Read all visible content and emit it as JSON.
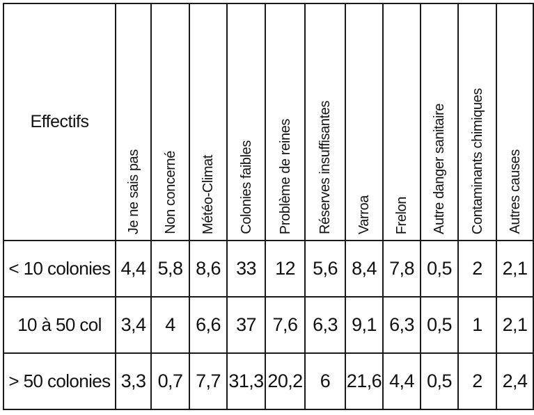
{
  "table": {
    "corner_label": "Effectifs",
    "columns": [
      "Je ne sais pas",
      "Non concerné",
      "Météo-Climat",
      "Colonies faibles",
      "Problème de reines",
      "Réserves insuffisantes",
      "Varroa",
      "Frelon",
      "Autre danger sanitaire",
      "Contaminants chimiques",
      "Autres causes"
    ],
    "rows": [
      {
        "label": "< 10 colonies",
        "values": [
          "4,4",
          "5,8",
          "8,6",
          "33",
          "12",
          "5,6",
          "8,4",
          "7,8",
          "0,5",
          "2",
          "2,1"
        ]
      },
      {
        "label": "10 à 50 col",
        "values": [
          "3,4",
          "4",
          "6,6",
          "37",
          "7,6",
          "6,3",
          "9,1",
          "6,3",
          "0,5",
          "1",
          "2,1"
        ]
      },
      {
        "label": "> 50 colonies",
        "values": [
          "3,3",
          "0,7",
          "7,7",
          "31,3",
          "20,2",
          "6",
          "21,6",
          "4,4",
          "0,5",
          "2",
          "2,4"
        ]
      }
    ]
  }
}
